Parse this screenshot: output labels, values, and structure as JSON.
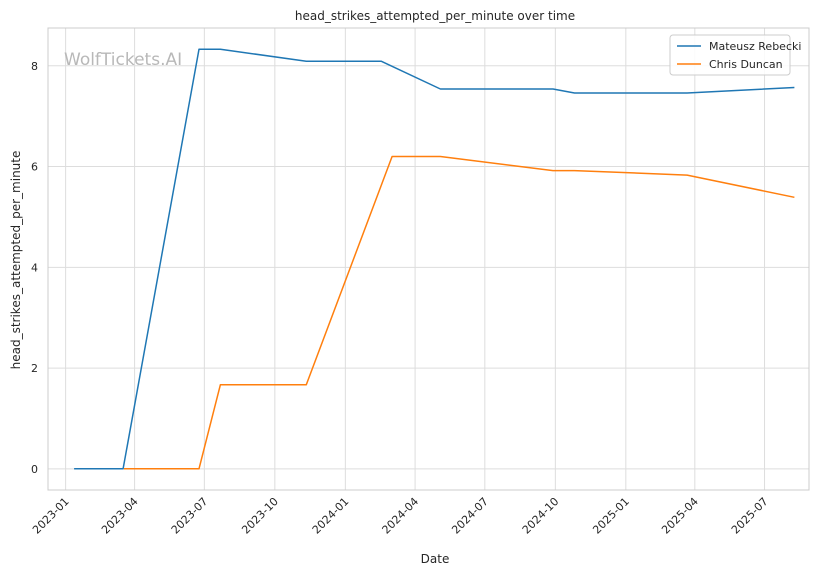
{
  "watermark": "WolfTickets.AI",
  "chart_data": {
    "type": "line",
    "title": "head_strikes_attempted_per_minute over time",
    "xlabel": "Date",
    "ylabel": "head_strikes_attempted_per_minute",
    "x_ticks": [
      "2023-01",
      "2023-04",
      "2023-07",
      "2023-10",
      "2024-01",
      "2024-04",
      "2024-07",
      "2024-10",
      "2025-01",
      "2025-04",
      "2025-07"
    ],
    "y_ticks": [
      0,
      2,
      4,
      6,
      8
    ],
    "xlim": [
      "2022-12-09",
      "2025-08-28"
    ],
    "ylim": [
      -0.42,
      8.75
    ],
    "grid": true,
    "legend_position": "top-right",
    "series": [
      {
        "name": "Mateusz Rebecki",
        "color": "#1f77b4",
        "points": [
          {
            "x": "2023-01-12",
            "y": 0.0
          },
          {
            "x": "2023-03-17",
            "y": 0.0
          },
          {
            "x": "2023-06-24",
            "y": 8.33
          },
          {
            "x": "2023-07-22",
            "y": 8.33
          },
          {
            "x": "2023-11-11",
            "y": 8.09
          },
          {
            "x": "2024-02-17",
            "y": 8.09
          },
          {
            "x": "2024-05-04",
            "y": 7.54
          },
          {
            "x": "2024-09-28",
            "y": 7.54
          },
          {
            "x": "2024-10-26",
            "y": 7.46
          },
          {
            "x": "2025-03-22",
            "y": 7.46
          },
          {
            "x": "2025-08-09",
            "y": 7.57
          }
        ]
      },
      {
        "name": "Chris Duncan",
        "color": "#ff7f0e",
        "points": [
          {
            "x": "2023-03-18",
            "y": 0.0
          },
          {
            "x": "2023-06-24",
            "y": 0.0
          },
          {
            "x": "2023-07-22",
            "y": 1.67
          },
          {
            "x": "2023-11-11",
            "y": 1.67
          },
          {
            "x": "2024-03-02",
            "y": 6.2
          },
          {
            "x": "2024-05-04",
            "y": 6.2
          },
          {
            "x": "2024-09-28",
            "y": 5.92
          },
          {
            "x": "2024-10-26",
            "y": 5.92
          },
          {
            "x": "2025-03-22",
            "y": 5.83
          },
          {
            "x": "2025-08-09",
            "y": 5.39
          }
        ]
      }
    ]
  }
}
